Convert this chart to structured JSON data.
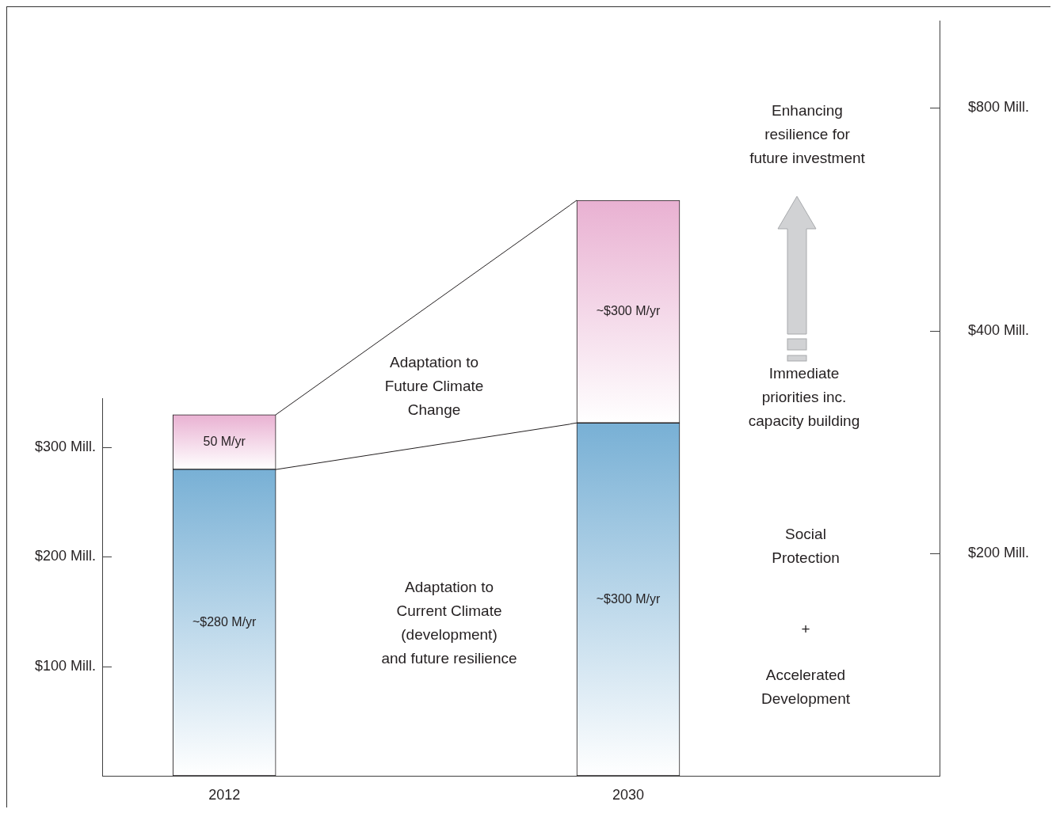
{
  "chart_data": [
    {
      "type": "bar",
      "categories": [
        "2012"
      ],
      "stacked": true,
      "series": [
        {
          "color": "#78b0d5",
          "values": [
            280
          ],
          "value_labels": [
            "~$280 M/yr"
          ]
        },
        {
          "color": "#e9b1d2",
          "values": [
            50
          ],
          "value_labels": [
            "50 M/yr"
          ]
        }
      ],
      "ylim": [
        0,
        345
      ],
      "yticks": [
        {
          "value": 100,
          "label": "$100 Mill."
        },
        {
          "value": 200,
          "label": "$200 Mill."
        },
        {
          "value": 300,
          "label": "$300 Mill."
        }
      ],
      "annotations": [
        "Adaptation to Future Climate Change",
        "Adaptation to Current Climate (development) and future resilience"
      ]
    },
    {
      "type": "bar",
      "categories": [
        "2030"
      ],
      "stacked": true,
      "log": true,
      "series": [
        {
          "color": "#78b0d5",
          "values": [
            300
          ],
          "value_labels": [
            "~$300 M/yr"
          ]
        },
        {
          "color": "#e9b1d2",
          "values": [
            300
          ],
          "value_labels": [
            "~$300 M/yr"
          ]
        }
      ],
      "ylim": [
        100,
        1050
      ],
      "yticks": [
        {
          "value": 200,
          "label": "$200 Mill."
        },
        {
          "value": 400,
          "label": "$400 Mill."
        },
        {
          "value": 800,
          "label": "$800 Mill."
        }
      ],
      "annotations": [
        "Enhancing resilience for future investment",
        "Immediate priorities inc. capacity building",
        "Social Protection",
        "+",
        "Accelerated Development"
      ]
    }
  ]
}
